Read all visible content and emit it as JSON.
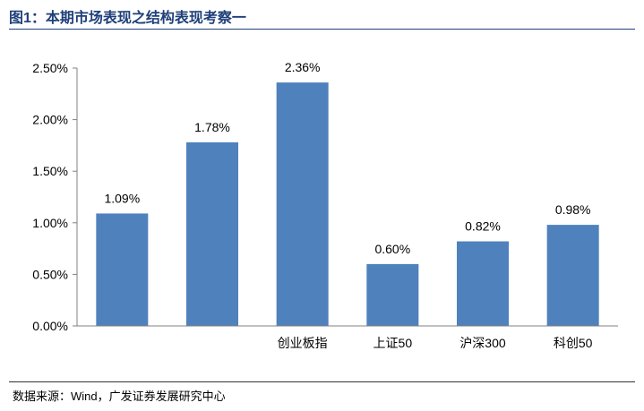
{
  "figure": {
    "title": "图1：本期市场表现之结构表现考察一",
    "source": "数据来源：Wind，广发证券发展研究中心"
  },
  "chart_data": {
    "type": "bar",
    "categories": [
      "",
      "",
      "创业板指",
      "上证50",
      "沪深300",
      "科创50"
    ],
    "values": [
      1.09,
      1.78,
      2.36,
      0.6,
      0.82,
      0.98
    ],
    "value_labels": [
      "1.09%",
      "1.78%",
      "2.36%",
      "0.60%",
      "0.82%",
      "0.98%"
    ],
    "y_ticks": [
      "0.00%",
      "0.50%",
      "1.00%",
      "1.50%",
      "2.00%",
      "2.50%"
    ],
    "ylim": [
      0,
      2.5
    ],
    "bar_color": "#4f81bd",
    "grid": false
  }
}
